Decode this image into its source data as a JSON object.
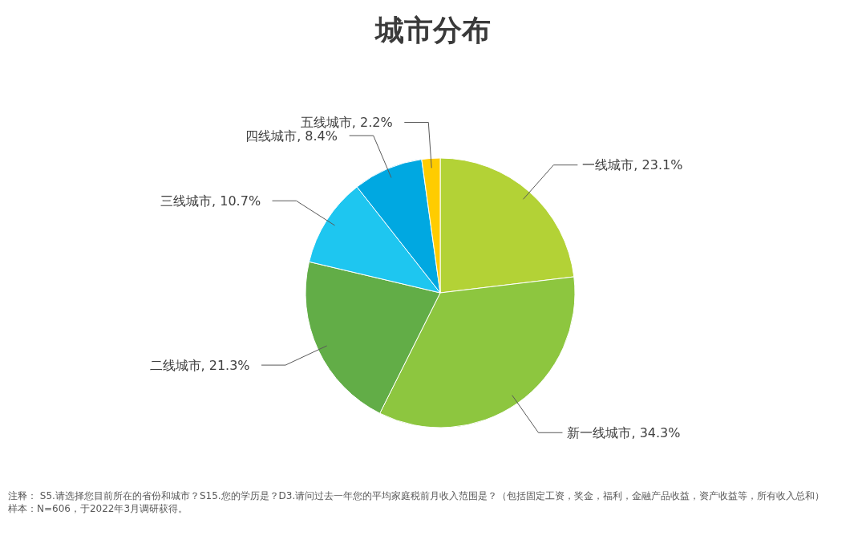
{
  "chart_data": {
    "type": "pie",
    "title": "城市分布",
    "categories": [
      "一线城市",
      "新一线城市",
      "二线城市",
      "三线城市",
      "四线城市",
      "五线城市"
    ],
    "values": [
      23.1,
      34.3,
      21.3,
      10.7,
      8.4,
      2.2
    ],
    "colors": [
      "#b3d236",
      "#8dc63f",
      "#62ad47",
      "#1ec6f0",
      "#00a8e1",
      "#ffcc00"
    ],
    "value_labels": [
      ", 23.1%",
      ", 34.3%",
      ", 21.3%",
      ", 10.7%",
      ", 8.4%",
      ", 2.2%"
    ],
    "annotations": [
      "注释：  S5.请选择您目前所在的省份和城市？S15.您的学历是？D3.请问过去一年您的平均家庭税前月收入范围是？（包括固定工资，奖金，福利，金融产品收益，资产收益等，所有收入总和）",
      "样本：N=606，于2022年3月调研获得。"
    ]
  }
}
